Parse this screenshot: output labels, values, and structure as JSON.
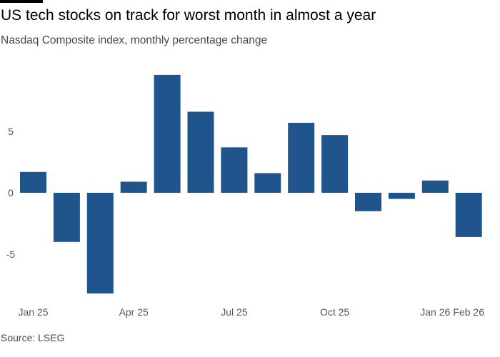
{
  "header": {
    "title": "US tech stocks on track for worst month in almost a year",
    "subtitle": "Nasdaq Composite index, monthly percentage change"
  },
  "footer": {
    "source": "Source: LSEG"
  },
  "chart_data": {
    "type": "bar",
    "title": "US tech stocks on track for worst month in almost a year",
    "subtitle": "Nasdaq Composite index, monthly percentage change",
    "categories": [
      "Jan 25",
      "Feb 25",
      "Mar 25",
      "Apr 25",
      "May 25",
      "Jun 25",
      "Jul 25",
      "Aug 25",
      "Sep 25",
      "Oct 25",
      "Nov 25",
      "Dec 25",
      "Jan 26",
      "Feb 26"
    ],
    "values": [
      1.7,
      -4.0,
      -8.2,
      0.9,
      9.6,
      6.6,
      3.7,
      1.6,
      5.7,
      4.7,
      -1.5,
      -0.5,
      1.0,
      -3.6
    ],
    "x_tick_labels": [
      "Jan 25",
      "Apr 25",
      "Jul 25",
      "Oct 25",
      "Jan 26",
      "Feb 26"
    ],
    "y_ticks": [
      -5,
      0,
      5
    ],
    "ylim": [
      -8.5,
      10
    ],
    "grid": false,
    "bar_color": "#1f558c"
  }
}
